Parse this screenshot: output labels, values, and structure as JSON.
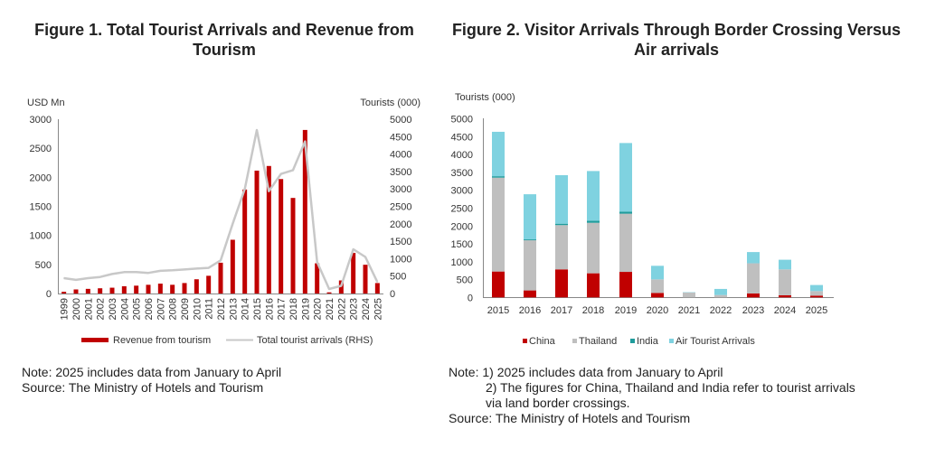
{
  "figure1": {
    "title": "Figure 1. Total Tourist Arrivals and Revenue from Tourism",
    "note": "Note: 2025 includes data from January to April",
    "source": "Source: The Ministry of Hotels and Tourism"
  },
  "figure2": {
    "title": "Figure 2. Visitor Arrivals Through Border Crossing Versus Air arrivals",
    "note1": "Note: 1) 2025 includes data from January to April",
    "note2": "2) The figures for China, Thailand and India refer to tourist arrivals",
    "note3": "via land border crossings.",
    "source": "Source: The Ministry of Hotels and Tourism"
  },
  "chart_data": [
    {
      "type": "bar",
      "title": "Figure 1. Total Tourist Arrivals and Revenue from Tourism",
      "xlabel": "",
      "ylabel": "USD Mn",
      "ylabel_right": "Tourists (000)",
      "ylim": [
        0,
        3000
      ],
      "ylim_right": [
        0,
        5000
      ],
      "yticks": [
        0,
        500,
        1000,
        1500,
        2000,
        2500,
        3000
      ],
      "yticks_right": [
        0,
        500,
        1000,
        1500,
        2000,
        2500,
        3000,
        3500,
        4000,
        4500,
        5000
      ],
      "grid": false,
      "legend_position": "bottom",
      "categories": [
        "1999",
        "2000",
        "2001",
        "2002",
        "2003",
        "2004",
        "2005",
        "2006",
        "2007",
        "2008",
        "2009",
        "2010",
        "2011",
        "2012",
        "2013",
        "2014",
        "2015",
        "2016",
        "2017",
        "2018",
        "2019",
        "2020",
        "2021",
        "2022",
        "2023",
        "2024",
        "2025"
      ],
      "series": [
        {
          "name": "Revenue from tourism",
          "type": "bar",
          "axis": "left",
          "color": "#c00000",
          "values": [
            30,
            70,
            80,
            90,
            100,
            125,
            135,
            150,
            170,
            150,
            180,
            245,
            305,
            530,
            925,
            1790,
            2115,
            2195,
            1970,
            1645,
            2815,
            520,
            20,
            225,
            700,
            495,
            180
          ]
        },
        {
          "name": "Total tourist arrivals (RHS)",
          "type": "line",
          "axis": "right",
          "color": "#c8c8c8",
          "values": [
            440,
            390,
            440,
            475,
            560,
            615,
            615,
            590,
            650,
            665,
            690,
            715,
            735,
            950,
            2000,
            3000,
            4690,
            2935,
            3430,
            3540,
            4360,
            900,
            130,
            220,
            1270,
            1050,
            330
          ]
        }
      ]
    },
    {
      "type": "bar",
      "stacked": true,
      "title": "Figure 2. Visitor Arrivals Through Border Crossing Versus Air arrivals",
      "xlabel": "",
      "ylabel": "Tourists (000)",
      "ylim": [
        0,
        5000
      ],
      "yticks": [
        0,
        500,
        1000,
        1500,
        2000,
        2500,
        3000,
        3500,
        4000,
        4500,
        5000
      ],
      "grid": false,
      "legend_position": "bottom",
      "categories": [
        "2015",
        "2016",
        "2017",
        "2018",
        "2019",
        "2020",
        "2021",
        "2022",
        "2023",
        "2024",
        "2025"
      ],
      "series": [
        {
          "name": "China",
          "color": "#c00000",
          "values": [
            725,
            195,
            785,
            675,
            715,
            125,
            0,
            0,
            110,
            60,
            50
          ]
        },
        {
          "name": "Thailand",
          "color": "#bfbfbf",
          "values": [
            2630,
            1405,
            1240,
            1415,
            1630,
            380,
            135,
            67,
            845,
            725,
            127
          ]
        },
        {
          "name": "India",
          "color": "#1f9c9c",
          "values": [
            40,
            25,
            40,
            60,
            60,
            0,
            0,
            0,
            0,
            0,
            0
          ]
        },
        {
          "name": "Air Tourist Arrivals",
          "color": "#7fd2e0",
          "values": [
            1245,
            1265,
            1360,
            1390,
            1920,
            380,
            10,
            170,
            315,
            270,
            170
          ]
        }
      ]
    }
  ]
}
